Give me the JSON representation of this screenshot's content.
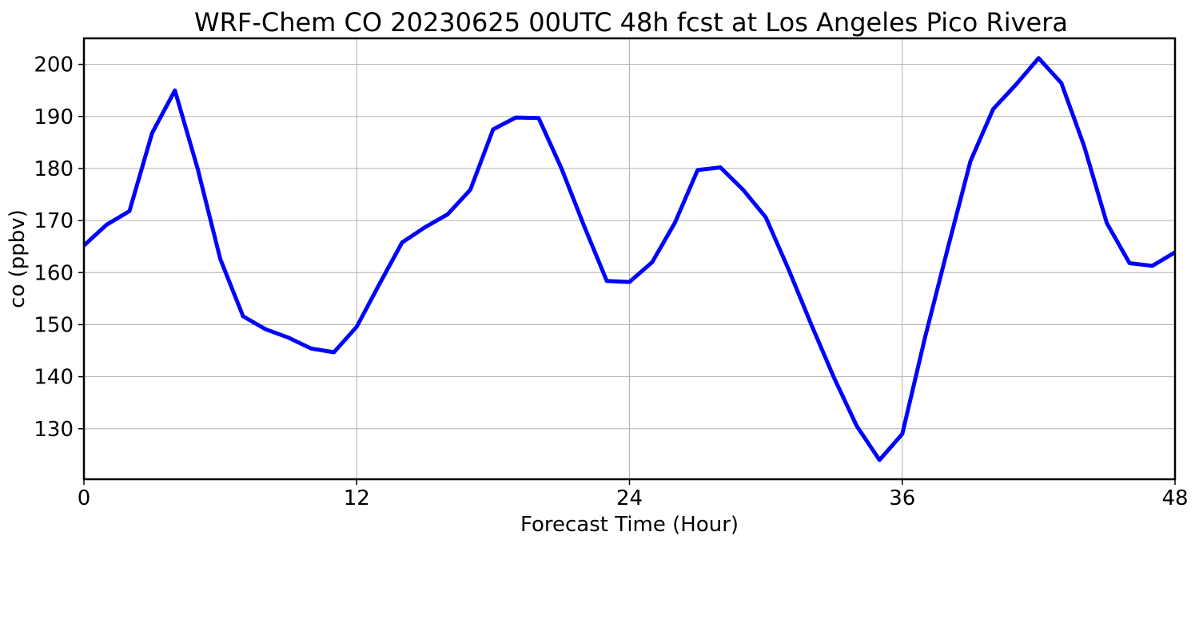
{
  "chart_data": {
    "type": "line",
    "title": "WRF-Chem CO  20230625 00UTC 48h fcst at Los Angeles Pico Rivera",
    "xlabel": "Forecast Time (Hour)",
    "ylabel": "co  (ppbv)",
    "xlim": [
      0,
      48
    ],
    "ylim": [
      120.3,
      205
    ],
    "xticks": [
      0,
      12,
      24,
      36,
      48
    ],
    "yticks": [
      130,
      140,
      150,
      160,
      170,
      180,
      190,
      200
    ],
    "grid": true,
    "series_color": "#0000ff",
    "x": [
      0,
      1,
      2,
      3,
      4,
      5,
      6,
      7,
      8,
      9,
      10,
      11,
      12,
      13,
      14,
      15,
      16,
      17,
      18,
      19,
      20,
      21,
      22,
      23,
      24,
      25,
      26,
      27,
      28,
      29,
      30,
      31,
      32,
      33,
      34,
      35,
      36,
      37,
      38,
      39,
      40,
      41,
      42,
      43,
      44,
      45,
      46,
      47,
      48
    ],
    "series": [
      {
        "values": [
          165.2,
          169.2,
          171.8,
          186.8,
          195.0,
          180.0,
          162.6,
          151.6,
          149.1,
          147.5,
          145.4,
          144.7,
          149.6,
          157.8,
          165.8,
          168.7,
          171.2,
          175.9,
          187.5,
          189.8,
          189.7,
          180.1,
          169.0,
          158.4,
          158.2,
          162.0,
          169.6,
          179.7,
          180.2,
          175.9,
          170.6,
          160.6,
          150.0,
          139.8,
          130.5,
          124.0,
          129.0,
          147.5,
          164.6,
          181.4,
          191.4,
          196.1,
          201.2,
          196.4,
          184.3,
          169.5,
          161.8,
          161.3,
          163.9
        ]
      }
    ]
  }
}
